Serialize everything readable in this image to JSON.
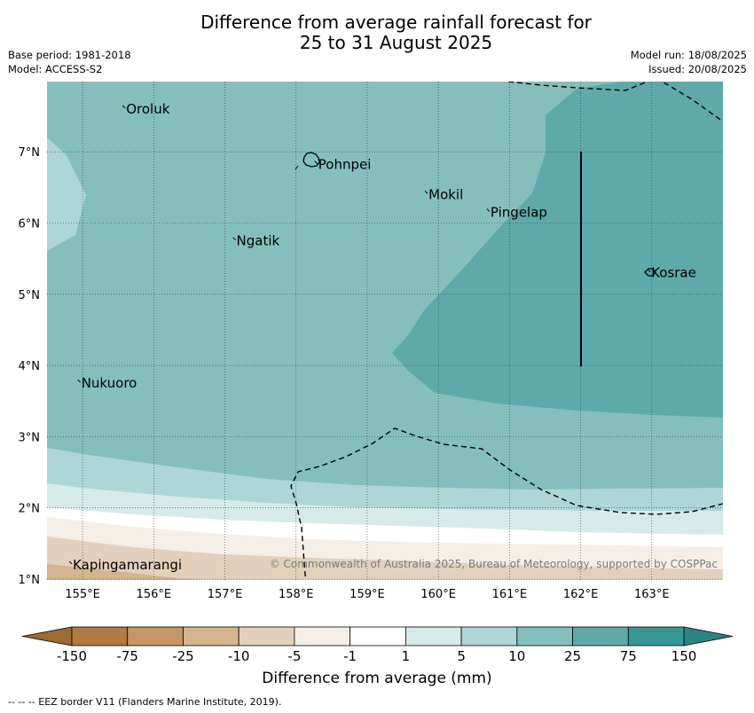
{
  "title": {
    "line1": "Difference from average rainfall forecast for",
    "line2": "25 to 31 August 2025"
  },
  "meta": {
    "base_period": "Base period: 1981-2018",
    "model": "Model: ACCESS-S2",
    "model_run": "Model run: 18/08/2025",
    "issued": "Issued: 20/08/2025"
  },
  "map": {
    "lon_range": [
      154.5,
      164.0
    ],
    "lat_range": [
      1.0,
      8.0
    ],
    "lon_ticks": [
      155,
      156,
      157,
      158,
      159,
      160,
      161,
      162,
      163
    ],
    "lon_labels": [
      "155°E",
      "156°E",
      "157°E",
      "158°E",
      "159°E",
      "160°E",
      "161°E",
      "162°E",
      "163°E"
    ],
    "lat_ticks": [
      1,
      2,
      3,
      4,
      5,
      6,
      7
    ],
    "lat_labels": [
      "1°N",
      "2°N",
      "3°N",
      "4°N",
      "5°N",
      "6°N",
      "7°N"
    ],
    "gridlines": true,
    "places": [
      {
        "name": "Oroluk",
        "lon": 155.6,
        "lat": 7.6
      },
      {
        "name": "Pohnpei",
        "lon": 158.3,
        "lat": 6.82
      },
      {
        "name": "Mokil",
        "lon": 159.85,
        "lat": 6.4
      },
      {
        "name": "Pingelap",
        "lon": 160.72,
        "lat": 6.15
      },
      {
        "name": "Ngatik",
        "lon": 157.15,
        "lat": 5.75
      },
      {
        "name": "Kosrae",
        "lon": 162.98,
        "lat": 5.3
      },
      {
        "name": "Nukuoro",
        "lon": 154.97,
        "lat": 3.75
      },
      {
        "name": "Kapingamarangi",
        "lon": 154.85,
        "lat": 1.2
      }
    ],
    "copyright": "© Commonwealth of Australia 2025, Bureau of Meteorology, supported by COSPPac"
  },
  "colorbar": {
    "labels": [
      "-150",
      "-75",
      "-25",
      "-10",
      "-5",
      "-1",
      "1",
      "5",
      "10",
      "25",
      "75",
      "150"
    ],
    "colors": [
      "#b07a40",
      "#c59668",
      "#d4b38f",
      "#e3d0bc",
      "#f4eee7",
      "#ffffff",
      "#d6eae9",
      "#aed6d6",
      "#84bfbe",
      "#5eaaaa",
      "#379796"
    ],
    "title": "Difference from average (mm)"
  },
  "footer": "--  --  -- EEZ border V11 (Flanders Marine Institute, 2019)."
}
